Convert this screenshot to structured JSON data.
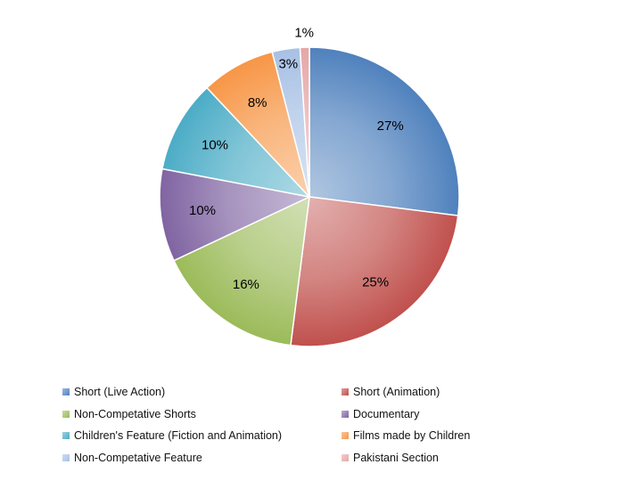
{
  "chart_data": {
    "type": "pie",
    "title": "",
    "legend_position": "bottom",
    "slices": [
      {
        "name": "Short (Live Action)",
        "value": 27,
        "label": "27%",
        "color": "#4f81bd"
      },
      {
        "name": "Short (Animation)",
        "value": 25,
        "label": "25%",
        "color": "#c0504d"
      },
      {
        "name": "Non-Competative Shorts",
        "value": 16,
        "label": "16%",
        "color": "#9bbb59"
      },
      {
        "name": "Documentary",
        "value": 10,
        "label": "10%",
        "color": "#8064a2"
      },
      {
        "name": "Children's Feature (Fiction and Animation)",
        "value": 10,
        "label": "10%",
        "color": "#4bacc6"
      },
      {
        "name": "Films made by Children",
        "value": 8,
        "label": "8%",
        "color": "#f79646"
      },
      {
        "name": "Non-Competative Feature",
        "value": 3,
        "label": "3%",
        "color": "#a7c0e4"
      },
      {
        "name": "Pakistani Section",
        "value": 1,
        "label": "1%",
        "color": "#e6a6a6"
      }
    ]
  }
}
